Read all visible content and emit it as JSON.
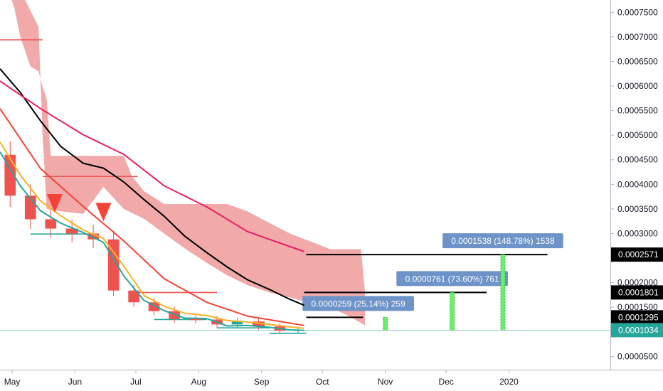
{
  "chart_data": {
    "type": "line",
    "x_ticks": [
      "May",
      "Jun",
      "Jul",
      "Aug",
      "Sep",
      "Oct",
      "Nov",
      "Dec",
      "2020"
    ],
    "y_ticks": [
      "0.0007500",
      "0.0007000",
      "0.0006500",
      "0.0006000",
      "0.0005500",
      "0.0005000",
      "0.0004500",
      "0.0004000",
      "0.0003500",
      "0.0003000",
      "0.0002000",
      "0.0001500",
      "0.0000500"
    ],
    "ylim": [
      2.3e-05,
      0.000775
    ],
    "price_tags": [
      {
        "label": "0.0002571",
        "value": 0.0002571,
        "style": "dark"
      },
      {
        "label": "0.0001801",
        "value": 0.0001801,
        "style": "dark"
      },
      {
        "label": "0.0001295",
        "value": 0.0001295,
        "style": "dark"
      },
      {
        "label": "0.0001034",
        "value": 0.0001034,
        "style": "green"
      }
    ],
    "targets": [
      {
        "value": 0.0001295,
        "from": "2019-09-23",
        "to": "2019-10-21",
        "note": "0.0000259 (25.14%) 259",
        "marker_date": "2019-11-01"
      },
      {
        "value": 0.0001801,
        "from": "2019-09-22",
        "to": "2019-12-21",
        "note": "0.0000761 (73.60%) 761",
        "marker_date": "2019-12-04"
      },
      {
        "value": 0.0002571,
        "from": "2019-09-23",
        "to": "2020-01-20",
        "note": "0.0001538 (148.78%) 1538",
        "marker_date": "2019-12-29"
      }
    ],
    "current_price_line": 0.0001034,
    "series": [
      {
        "color": "#000000",
        "x": [
          "2019-04-25",
          "2019-05-05",
          "2019-05-15",
          "2019-05-25",
          "2019-06-05",
          "2019-06-15",
          "2019-06-25",
          "2019-07-05",
          "2019-07-15",
          "2019-07-25",
          "2019-08-05",
          "2019-08-15",
          "2019-08-25",
          "2019-09-05",
          "2019-09-15",
          "2019-09-22"
        ],
        "y": [
          0.000635,
          0.000587,
          0.000529,
          0.000477,
          0.000443,
          0.000433,
          0.000405,
          0.000369,
          0.000335,
          0.000295,
          0.000261,
          0.000232,
          0.000206,
          0.000186,
          0.000166,
          0.000154
        ]
      },
      {
        "color": "#e91e63",
        "x": [
          "2019-04-25",
          "2019-05-15",
          "2019-06-05",
          "2019-06-25",
          "2019-07-15",
          "2019-08-05",
          "2019-08-25",
          "2019-09-22"
        ],
        "y": [
          0.00061,
          0.000554,
          0.000501,
          0.000461,
          0.000397,
          0.000354,
          0.000304,
          0.000263
        ]
      },
      {
        "color": "#f44336",
        "x": [
          "2019-04-25",
          "2019-05-15",
          "2019-06-05",
          "2019-06-25",
          "2019-07-15",
          "2019-08-05",
          "2019-08-25",
          "2019-09-22"
        ],
        "y": [
          0.000554,
          0.000432,
          0.000355,
          0.000285,
          0.000208,
          0.00016,
          0.000132,
          0.000113
        ]
      },
      {
        "color": "#f5b325",
        "x": [
          "2019-04-25",
          "2019-05-05",
          "2019-05-15",
          "2019-05-25",
          "2019-06-05",
          "2019-06-15",
          "2019-06-25",
          "2019-07-05",
          "2019-07-15",
          "2019-07-25",
          "2019-08-05",
          "2019-08-15",
          "2019-08-25",
          "2019-09-05",
          "2019-09-15",
          "2019-09-22"
        ],
        "y": [
          0.000486,
          0.000419,
          0.000366,
          0.000336,
          0.000307,
          0.00029,
          0.000234,
          0.000174,
          0.000152,
          0.000138,
          0.000133,
          0.000123,
          0.00012,
          0.000115,
          0.00011,
          0.000107
        ]
      },
      {
        "color": "#26a69a",
        "x": [
          "2019-04-25",
          "2019-05-05",
          "2019-05-15",
          "2019-05-25",
          "2019-06-05",
          "2019-06-15",
          "2019-06-25",
          "2019-07-05",
          "2019-07-15",
          "2019-07-25",
          "2019-08-05",
          "2019-08-15",
          "2019-08-25",
          "2019-09-05",
          "2019-09-15",
          "2019-09-22"
        ],
        "y": [
          0.000466,
          0.000397,
          0.000346,
          0.000321,
          0.000302,
          0.000282,
          0.000214,
          0.000164,
          0.000143,
          0.000128,
          0.000127,
          0.000112,
          0.000113,
          0.000109,
          0.000104,
          0.000103
        ]
      }
    ],
    "price_bars": {
      "colors": {
        "up": "#26a69a",
        "down": "#ef5350"
      },
      "x": [
        "2019-04-25",
        "2019-05-05",
        "2019-05-15",
        "2019-05-25",
        "2019-06-05",
        "2019-06-15",
        "2019-06-25",
        "2019-07-05",
        "2019-07-15",
        "2019-07-25",
        "2019-08-05",
        "2019-08-15",
        "2019-08-25",
        "2019-09-05",
        "2019-09-15",
        "2019-09-23"
      ],
      "close": [
        0.00046,
        0.000377,
        0.000329,
        0.00031,
        0.0003,
        0.000288,
        0.000184,
        0.00016,
        0.000142,
        0.000126,
        0.000125,
        0.000115,
        0.000121,
        0.000111,
        0.000102,
        0.000104
      ]
    },
    "cloud_upper": {
      "color": "#ef9a9a",
      "x": [
        "2019-04-29",
        "2019-05-02",
        "2019-05-05",
        "2019-05-10",
        "2019-05-14",
        "2019-05-16",
        "2019-05-18",
        "2019-05-20",
        "2019-05-25",
        "2019-06-05",
        "2019-06-15",
        "2019-06-25",
        "2019-06-29",
        "2019-07-05",
        "2019-07-15",
        "2019-07-25",
        "2019-08-05",
        "2019-08-15",
        "2019-08-25",
        "2019-09-05",
        "2019-09-15",
        "2019-09-25",
        "2019-10-05",
        "2019-10-15",
        "2019-10-20",
        "2019-10-22"
      ],
      "y": [
        0.000795,
        0.00076,
        0.0007,
        0.00064,
        0.00063,
        0.000598,
        0.000574,
        0.000458,
        0.000458,
        0.000458,
        0.000458,
        0.000458,
        0.000417,
        0.000386,
        0.00036,
        0.00036,
        0.00036,
        0.00036,
        0.000345,
        0.000321,
        0.0003,
        0.000284,
        0.000268,
        0.000268,
        0.000268,
        0.00018
      ]
    },
    "cloud_lower": {
      "x": [
        "2019-04-29",
        "2019-05-05",
        "2019-05-14",
        "2019-05-16",
        "2019-05-18",
        "2019-05-25",
        "2019-06-05",
        "2019-06-15",
        "2019-06-25",
        "2019-07-05",
        "2019-07-15",
        "2019-07-25",
        "2019-08-05",
        "2019-08-15",
        "2019-08-25",
        "2019-09-05",
        "2019-09-15",
        "2019-09-25",
        "2019-10-05",
        "2019-10-15",
        "2019-10-22"
      ],
      "y": [
        0.000795,
        0.000795,
        0.00072,
        0.0005,
        0.00035,
        0.000345,
        0.00034,
        0.000395,
        0.00035,
        0.00033,
        0.0003,
        0.00027,
        0.00024,
        0.000215,
        0.000195,
        0.00018,
        0.00017,
        0.000158,
        0.00015,
        0.00013,
        0.000113
      ]
    },
    "horizontal_segments": [
      {
        "value": 0.000694,
        "from": "2019-04-25",
        "to": "2019-05-16",
        "color": "#ef5350"
      },
      {
        "value": 0.000416,
        "from": "2019-05-16",
        "to": "2019-07-02",
        "color": "#ef5350"
      },
      {
        "value": 0.00018,
        "from": "2019-07-02",
        "to": "2019-08-10",
        "color": "#ef5350"
      },
      {
        "value": 0.000299,
        "from": "2019-05-10",
        "to": "2019-06-10",
        "color": "#26a69a"
      },
      {
        "value": 0.000125,
        "from": "2019-07-10",
        "to": "2019-08-05",
        "color": "#26a69a"
      },
      {
        "value": 0.000108,
        "from": "2019-08-10",
        "to": "2019-09-05",
        "color": "#26a69a"
      },
      {
        "value": 9.7e-05,
        "from": "2019-09-05",
        "to": "2019-09-23",
        "color": "#26a69a"
      }
    ],
    "signal_markers": [
      {
        "date": "2019-05-22",
        "value": 0.00036,
        "direction": "down"
      },
      {
        "date": "2019-06-15",
        "value": 0.000342,
        "direction": "down"
      }
    ]
  }
}
